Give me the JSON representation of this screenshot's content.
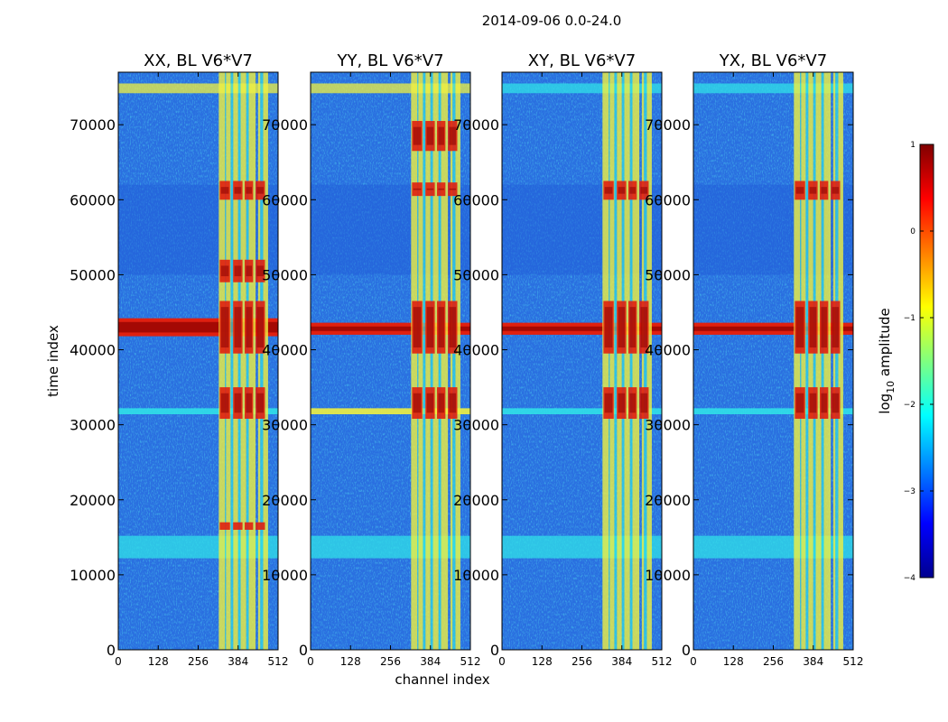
{
  "figure": {
    "suptitle": "2014-09-06 0.0-24.0"
  },
  "chart_data": [
    {
      "type": "heatmap",
      "title": "XX, BL V6*V7",
      "xlabel": "channel index",
      "ylabel": "time index",
      "xlim": [
        0,
        512
      ],
      "ylim": [
        0,
        77000
      ],
      "xticks": [
        0,
        128,
        256,
        384,
        512
      ],
      "yticks": [
        0,
        10000,
        20000,
        30000,
        40000,
        50000,
        60000,
        70000
      ]
    },
    {
      "type": "heatmap",
      "title": "YY, BL V6*V7",
      "xlabel": "channel index",
      "ylabel": "",
      "xlim": [
        0,
        512
      ],
      "ylim": [
        0,
        77000
      ],
      "xticks": [
        0,
        128,
        256,
        384,
        512
      ],
      "yticks": [
        0,
        10000,
        20000,
        30000,
        40000,
        50000,
        60000,
        70000
      ]
    },
    {
      "type": "heatmap",
      "title": "XY, BL V6*V7",
      "xlabel": "channel index",
      "ylabel": "",
      "xlim": [
        0,
        512
      ],
      "ylim": [
        0,
        77000
      ],
      "xticks": [
        0,
        128,
        256,
        384,
        512
      ],
      "yticks": [
        0,
        10000,
        20000,
        30000,
        40000,
        50000,
        60000,
        70000
      ]
    },
    {
      "type": "heatmap",
      "title": "YX, BL V6*V7",
      "xlabel": "channel index",
      "ylabel": "",
      "xlim": [
        0,
        512
      ],
      "ylim": [
        0,
        77000
      ],
      "xticks": [
        0,
        128,
        256,
        384,
        512
      ],
      "yticks": [
        0,
        10000,
        20000,
        30000,
        40000,
        50000,
        60000,
        70000
      ]
    }
  ],
  "colorbar": {
    "label_prefix": "log",
    "label_subscript": "10",
    "label_suffix": " amplitude",
    "range": [
      -4,
      1
    ],
    "ticks": [
      1,
      0,
      -1,
      -2,
      -3,
      -4
    ],
    "tick_labels": [
      "1",
      "0",
      "−1",
      "−2",
      "−3",
      "−4"
    ],
    "colormap": "jet"
  },
  "colors": {
    "background_low": "#2a6fe0",
    "cool": "#40a0ff",
    "cyan": "#30e0e8",
    "yellow": "#f0f040",
    "hot": "#e02010",
    "dark_red": "#8a0000",
    "dark_blue": "#00008f"
  }
}
